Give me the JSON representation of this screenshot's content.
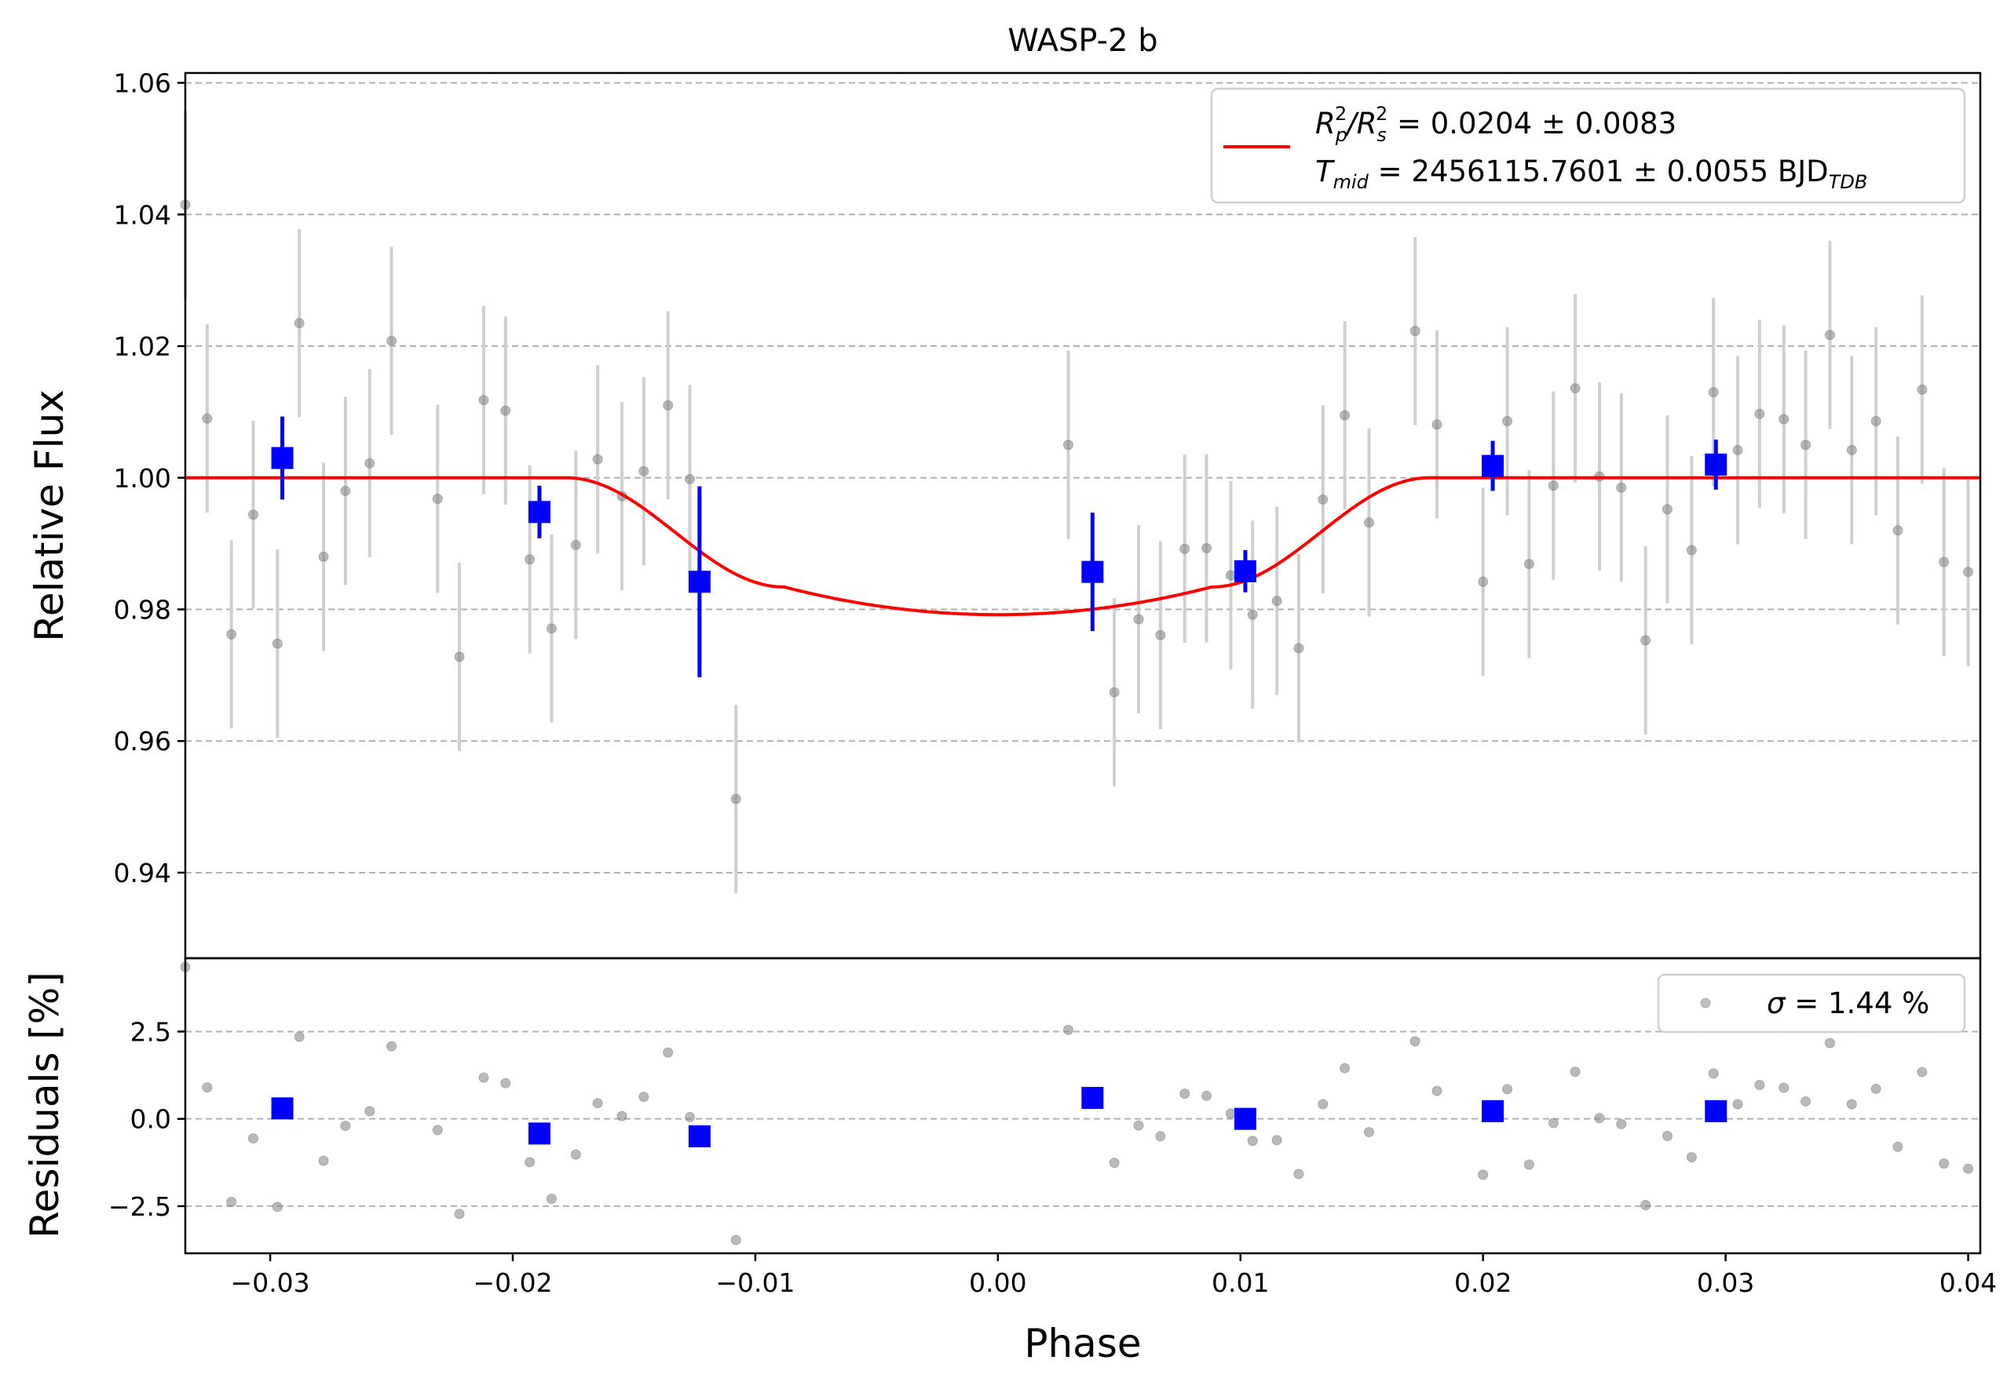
{
  "chart_data": [
    {
      "type": "scatter",
      "title": "WASP-2 b",
      "ylabel": "Relative Flux",
      "xlabel": "",
      "xlim": [
        -0.0335,
        0.0405
      ],
      "ylim": [
        0.927,
        1.0615
      ],
      "grid": true,
      "y_ticks": [
        "0.94",
        "0.96",
        "0.98",
        "1.00",
        "1.02",
        "1.04",
        "1.06"
      ],
      "legend": {
        "placement": "top-right",
        "line1": {
          "prefix": "R",
          "sub1": "p",
          "sup1": "2",
          "mid": "/R",
          "sub2": "s",
          "sup2": "2",
          "suffix": " = 0.0204 ± 0.0083"
        },
        "line2": {
          "prefix": "T",
          "sub1": "mid",
          "value": " = 2456115.7601 ± 0.0055 BJD",
          "sub2": "TDB"
        }
      },
      "colors": {
        "raw": "#808080",
        "raw_err": "#cfcfcf",
        "binned": "#0000ff",
        "model": "#ff0000"
      },
      "raw_points": {
        "x": [
          -0.0335,
          -0.0326,
          -0.0316,
          -0.0307,
          -0.0297,
          -0.0288,
          -0.0278,
          -0.0269,
          -0.0259,
          -0.025,
          -0.0231,
          -0.0222,
          -0.0212,
          -0.0203,
          -0.0193,
          -0.0184,
          -0.0174,
          -0.0165,
          -0.0155,
          -0.0146,
          -0.0136,
          -0.0127,
          -0.0108,
          0.0029,
          0.0048,
          0.0058,
          0.0067,
          0.0077,
          0.0086,
          0.0096,
          0.0105,
          0.0115,
          0.0124,
          0.0134,
          0.0143,
          0.0153,
          0.0172,
          0.0181,
          0.02,
          0.021,
          0.0219,
          0.0229,
          0.0238,
          0.0248,
          0.0257,
          0.0267,
          0.0276,
          0.0286,
          0.0295,
          0.0305,
          0.0314,
          0.0324,
          0.0333,
          0.0343,
          0.0352,
          0.0362,
          0.0371,
          0.0381,
          0.039,
          0.04
        ],
        "y": [
          1.0415,
          1.009,
          0.9762,
          0.9944,
          0.9748,
          1.0235,
          0.988,
          0.998,
          1.0022,
          1.0208,
          0.9968,
          0.9728,
          1.0118,
          1.0102,
          0.9876,
          0.9771,
          0.9898,
          1.0028,
          0.9972,
          1.001,
          1.011,
          0.9998,
          0.9512,
          1.005,
          0.9674,
          0.9785,
          0.9761,
          0.9892,
          0.9893,
          0.9852,
          0.9792,
          0.9813,
          0.9741,
          0.9967,
          1.0095,
          0.9932,
          1.0223,
          1.0081,
          0.9842,
          1.0086,
          0.9869,
          0.9988,
          1.0136,
          1.0002,
          0.9985,
          0.9753,
          0.9952,
          0.989,
          1.013,
          1.0042,
          1.0097,
          1.0089,
          1.005,
          1.0217,
          1.0042,
          1.0086,
          0.992,
          1.0134,
          0.9872,
          0.9857
        ],
        "yerr": 0.0143
      },
      "binned_points": {
        "x": [
          -0.0295,
          -0.0189,
          -0.0123,
          0.0039,
          0.0102,
          0.0204,
          0.0296
        ],
        "y": [
          1.003,
          0.9948,
          0.9842,
          0.9857,
          0.9858,
          1.0018,
          1.002
        ],
        "yerr": [
          0.0063,
          0.004,
          0.0145,
          0.009,
          0.0032,
          0.0038,
          0.0038
        ]
      },
      "model": {
        "depth": 0.0204,
        "t1": -0.0178,
        "t2": -0.0088,
        "t3": 0.0088,
        "t4": 0.0178,
        "min_flux": 0.9792
      }
    },
    {
      "type": "scatter",
      "title": "",
      "ylabel": "Residuals [%]",
      "xlabel": "Phase",
      "xlim": [
        -0.0335,
        0.0405
      ],
      "ylim": [
        -3.85,
        4.6
      ],
      "grid": true,
      "x_ticks": [
        "−0.03",
        "−0.02",
        "−0.01",
        "0.00",
        "0.01",
        "0.02",
        "0.03",
        "0.04"
      ],
      "y_ticks": [
        "−2.5",
        "0.0",
        "2.5"
      ],
      "legend": {
        "placement": "top-right",
        "label_sym": "σ",
        "label_rest": " = 1.44 %"
      },
      "raw_residuals": [
        4.35,
        0.9,
        -2.38,
        -0.56,
        -2.52,
        2.35,
        -1.2,
        -0.2,
        0.22,
        2.08,
        -0.32,
        -2.72,
        1.18,
        1.02,
        -1.24,
        -2.29,
        -1.02,
        0.45,
        0.08,
        0.63,
        1.9,
        0.05,
        -3.47,
        2.55,
        -1.26,
        -0.19,
        -0.5,
        0.72,
        0.66,
        0.15,
        -0.63,
        -0.61,
        -1.58,
        0.42,
        1.45,
        -0.38,
        2.22,
        0.8,
        -1.6,
        0.85,
        -1.31,
        -0.12,
        1.35,
        0.02,
        -0.15,
        -2.47,
        -0.49,
        -1.1,
        1.3,
        0.42,
        0.97,
        0.89,
        0.5,
        2.17,
        0.42,
        0.86,
        -0.8,
        1.34,
        -1.28,
        -1.43
      ],
      "binned_residuals": [
        0.3,
        -0.42,
        -0.5,
        0.6,
        0.0,
        0.22,
        0.22
      ]
    }
  ]
}
